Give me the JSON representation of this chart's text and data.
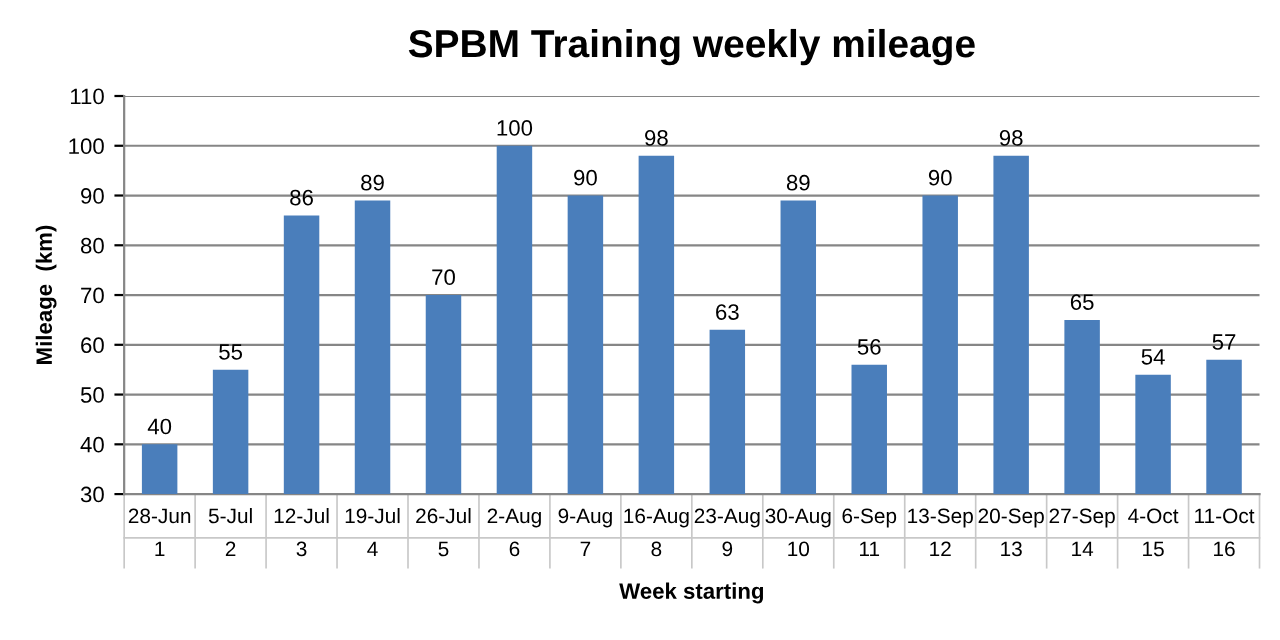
{
  "chart_data": {
    "type": "bar",
    "title": "SPBM Training weekly mileage",
    "xlabel": "Week starting",
    "ylabel": "Mileage  (km)",
    "categories": [
      "28-Jun\n1",
      "5-Jul\n2",
      "12-Jul\n3",
      "19-Jul\n4",
      "26-Jul\n5",
      "2-Aug\n6",
      "9-Aug\n7",
      "16-Aug\n8",
      "23-Aug\n9",
      "30-Aug\n10",
      "6-Sep\n11",
      "13-Sep\n12",
      "20-Sep\n13",
      "27-Sep\n14",
      "4-Oct\n15",
      "11-Oct\n16"
    ],
    "values": [
      40,
      55,
      86,
      89,
      70,
      100,
      90,
      98,
      63,
      89,
      56,
      90,
      98,
      65,
      54,
      57
    ],
    "color": "#4a7ebb",
    "ylim": [
      30,
      110
    ],
    "yticks": [
      30,
      40,
      50,
      60,
      70,
      80,
      90,
      100,
      110
    ],
    "grid": "y",
    "data_labels": true
  }
}
